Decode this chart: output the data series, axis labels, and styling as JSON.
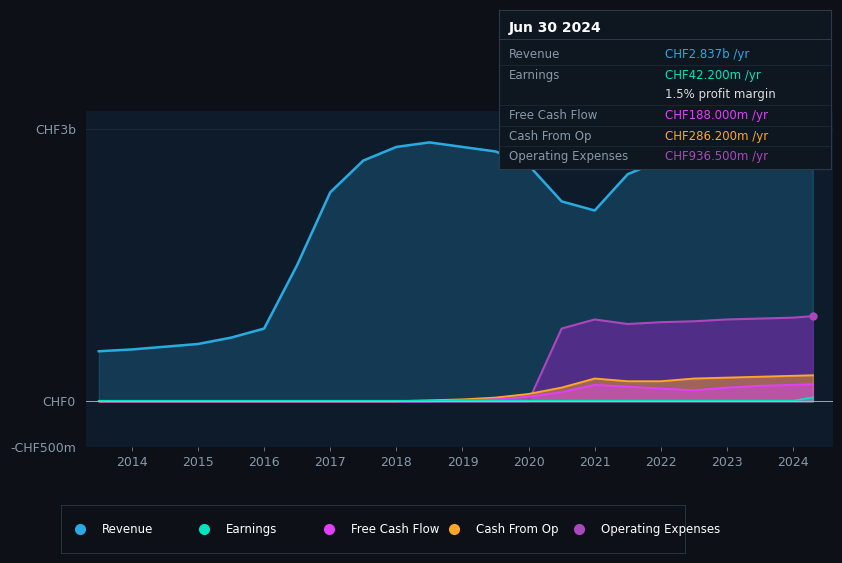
{
  "background_color": "#0d1117",
  "plot_bg_color": "#0d1b2a",
  "years": [
    2013.5,
    2014,
    2014.5,
    2015,
    2015.5,
    2016,
    2016.5,
    2017,
    2017.5,
    2018,
    2018.5,
    2019,
    2019.5,
    2020,
    2020.5,
    2021,
    2021.5,
    2022,
    2022.5,
    2023,
    2023.5,
    2024,
    2024.3
  ],
  "revenue": [
    0.55,
    0.57,
    0.6,
    0.63,
    0.7,
    0.8,
    1.5,
    2.3,
    2.65,
    2.8,
    2.85,
    2.8,
    2.75,
    2.6,
    2.2,
    2.1,
    2.5,
    2.65,
    2.7,
    2.75,
    2.78,
    2.8,
    2.84
  ],
  "earnings": [
    0.005,
    0.005,
    0.005,
    0.005,
    0.005,
    0.005,
    0.005,
    0.005,
    0.005,
    0.005,
    0.005,
    0.005,
    0.005,
    0.005,
    0.005,
    0.005,
    0.005,
    0.005,
    0.005,
    0.005,
    0.005,
    0.005,
    0.042
  ],
  "free_cash_flow": [
    0.0,
    0.0,
    0.0,
    0.0,
    0.0,
    0.0,
    0.0,
    0.0,
    0.0,
    0.0,
    0.0,
    0.01,
    0.02,
    0.05,
    0.1,
    0.18,
    0.16,
    0.14,
    0.12,
    0.15,
    0.17,
    0.18,
    0.188
  ],
  "cash_from_op": [
    0.0,
    0.0,
    0.0,
    0.0,
    0.0,
    0.0,
    0.0,
    0.0,
    0.0,
    0.0,
    0.01,
    0.02,
    0.04,
    0.08,
    0.15,
    0.25,
    0.22,
    0.22,
    0.25,
    0.26,
    0.27,
    0.28,
    0.286
  ],
  "op_expenses": [
    0.0,
    0.0,
    0.0,
    0.0,
    0.0,
    0.0,
    0.0,
    0.0,
    0.0,
    0.0,
    0.0,
    0.0,
    0.0,
    0.0,
    0.8,
    0.9,
    0.85,
    0.87,
    0.88,
    0.9,
    0.91,
    0.92,
    0.9365
  ],
  "revenue_color": "#29abe2",
  "earnings_color": "#00e5c0",
  "free_cash_flow_color": "#e040fb",
  "cash_from_op_color": "#ffa726",
  "op_expenses_color": "#5c2d91",
  "op_expenses_line_color": "#ab47bc",
  "grid_color": "#1a2a3a",
  "axis_label_color": "#8899aa",
  "ylim_min": -0.5,
  "ylim_max": 3.2,
  "ytick_labels": [
    "-CHF500m",
    "CHF0",
    "CHF3b"
  ],
  "ytick_values": [
    -0.5,
    0.0,
    3.0
  ],
  "xtick_years": [
    2014,
    2015,
    2016,
    2017,
    2018,
    2019,
    2020,
    2021,
    2022,
    2023,
    2024
  ],
  "info_box": {
    "title": "Jun 30 2024",
    "rows": [
      {
        "label": "Revenue",
        "value": "CHF2.837b /yr",
        "value_color": "#29abe2"
      },
      {
        "label": "Earnings",
        "value": "CHF42.200m /yr",
        "value_color": "#00e5c0"
      },
      {
        "label": "",
        "value": "1.5% profit margin",
        "value_color": "#dddddd"
      },
      {
        "label": "Free Cash Flow",
        "value": "CHF188.000m /yr",
        "value_color": "#e040fb"
      },
      {
        "label": "Cash From Op",
        "value": "CHF286.200m /yr",
        "value_color": "#ffa726"
      },
      {
        "label": "Operating Expenses",
        "value": "CHF936.500m /yr",
        "value_color": "#ab47bc"
      }
    ]
  },
  "legend": [
    {
      "label": "Revenue",
      "color": "#29abe2"
    },
    {
      "label": "Earnings",
      "color": "#00e5c0"
    },
    {
      "label": "Free Cash Flow",
      "color": "#e040fb"
    },
    {
      "label": "Cash From Op",
      "color": "#ffa726"
    },
    {
      "label": "Operating Expenses",
      "color": "#ab47bc"
    }
  ]
}
